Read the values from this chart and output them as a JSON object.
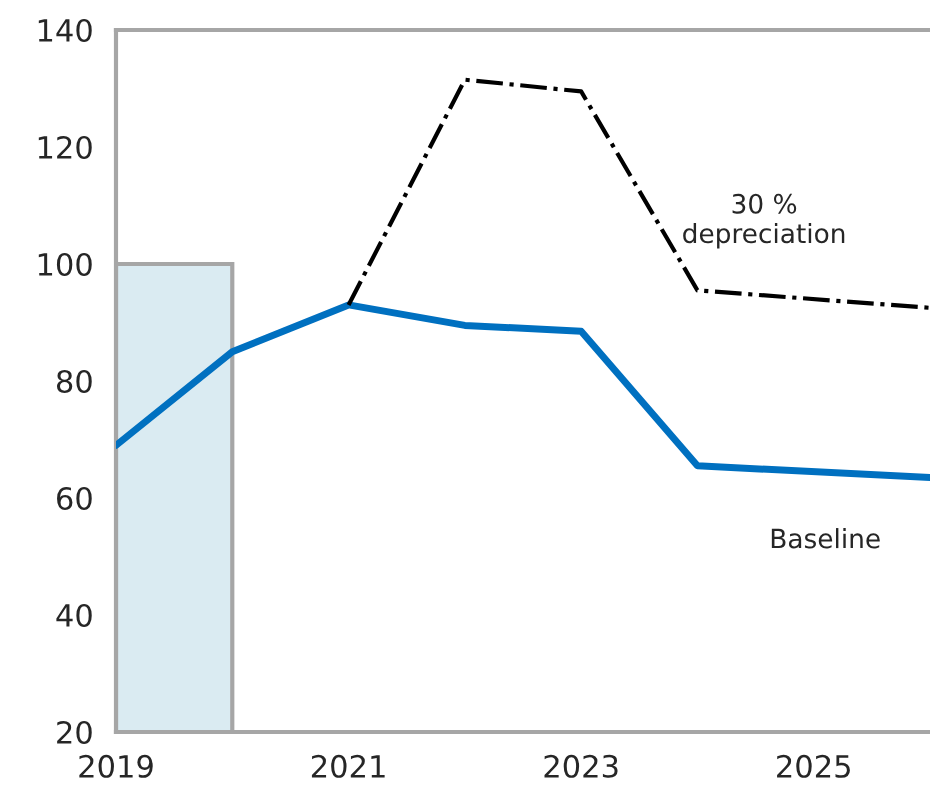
{
  "chart_data": {
    "type": "line",
    "series": [
      {
        "type": "bar",
        "x": [
          2019.5
        ],
        "values": [
          100
        ],
        "color": "#daebf2"
      },
      {
        "name": "Baseline",
        "x": [
          2019,
          2020,
          2021,
          2022,
          2023,
          2024,
          2026
        ],
        "values": [
          69,
          85,
          93,
          89.5,
          88.5,
          65.5,
          63.5
        ],
        "color": "#0070c0",
        "line_style": "solid"
      },
      {
        "name": "30 %\ndepreciation",
        "x": [
          2021,
          2022,
          2023,
          2024,
          2026
        ],
        "values": [
          93,
          131.5,
          129.5,
          95.5,
          92.5
        ],
        "color": "#000000",
        "line_style": "dashdot"
      }
    ],
    "xlim": [
      2019,
      2026
    ],
    "xticks": [
      2019,
      2021,
      2023,
      2025
    ],
    "ylim": [
      20,
      140
    ],
    "yticks": [
      20,
      40,
      60,
      80,
      100,
      120,
      140
    ],
    "grid": false,
    "legend": false
  }
}
